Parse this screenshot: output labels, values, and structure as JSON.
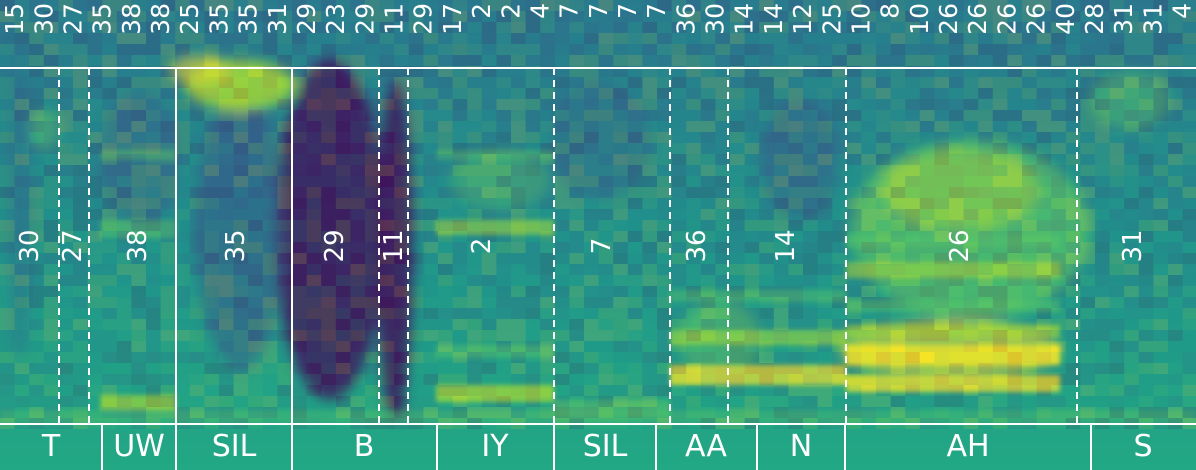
{
  "frame_labels": [
    "15",
    "30",
    "27",
    "35",
    "38",
    "38",
    "25",
    "35",
    "35",
    "31",
    "29",
    "23",
    "29",
    "11",
    "29",
    "17",
    "2",
    "2",
    "4",
    "7",
    "7",
    "7",
    "7",
    "36",
    "30",
    "14",
    "14",
    "12",
    "25",
    "10",
    "8",
    "10",
    "26",
    "26",
    "26",
    "26",
    "40",
    "28",
    "31",
    "31",
    "4"
  ],
  "segment_labels": [
    "30",
    "27",
    "38",
    "35",
    "29",
    "11",
    "2",
    "7",
    "36",
    "14",
    "26",
    "31"
  ],
  "phonemes": [
    "T",
    "UW",
    "SIL",
    "B",
    "IY",
    "SIL",
    "AA",
    "N",
    "AH",
    "S"
  ],
  "colors": {
    "divider": "#ffffff",
    "dark": "#440154",
    "teal": "#21918c",
    "yellow": "#fde725"
  }
}
